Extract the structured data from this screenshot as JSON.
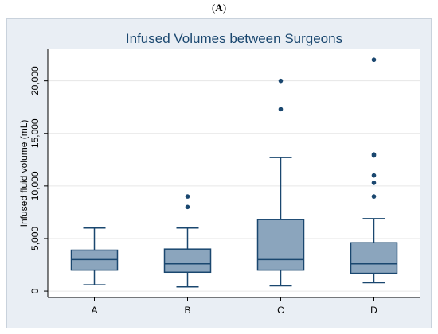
{
  "figure": {
    "panel_label_open": "(",
    "panel_label_letter": "A",
    "panel_label_close": ")"
  },
  "colors": {
    "box_fill": "#8ba5bd",
    "box_stroke": "#1a476f",
    "outlier": "#1a476f",
    "plot_bg": "#ffffff",
    "frame_bg": "#e9eef4",
    "grid": "#e6e6e6"
  },
  "chart_data": {
    "type": "box",
    "title": "Infused Volumes between Surgeons",
    "xlabel": "",
    "ylabel": "Infused fluid volume (mL)",
    "ylim": [
      -600,
      23000
    ],
    "yticks": [
      0,
      5000,
      10000,
      15000,
      20000
    ],
    "ytick_labels": [
      "0",
      "5,000",
      "10,000",
      "15,000",
      "20,000"
    ],
    "grid": true,
    "categories": [
      "A",
      "B",
      "C",
      "D"
    ],
    "boxes": [
      {
        "category": "A",
        "whisker_low": 600,
        "q1": 2000,
        "median": 3000,
        "q3": 3900,
        "whisker_high": 6000,
        "outliers": []
      },
      {
        "category": "B",
        "whisker_low": 400,
        "q1": 1800,
        "median": 2600,
        "q3": 4000,
        "whisker_high": 6000,
        "outliers": [
          8000,
          9000
        ]
      },
      {
        "category": "C",
        "whisker_low": 500,
        "q1": 2000,
        "median": 3000,
        "q3": 6800,
        "whisker_high": 12700,
        "outliers": [
          17300,
          20000
        ]
      },
      {
        "category": "D",
        "whisker_low": 800,
        "q1": 1700,
        "median": 2600,
        "q3": 4600,
        "whisker_high": 6900,
        "outliers": [
          9000,
          10300,
          11000,
          12900,
          13000,
          22000
        ]
      }
    ]
  }
}
